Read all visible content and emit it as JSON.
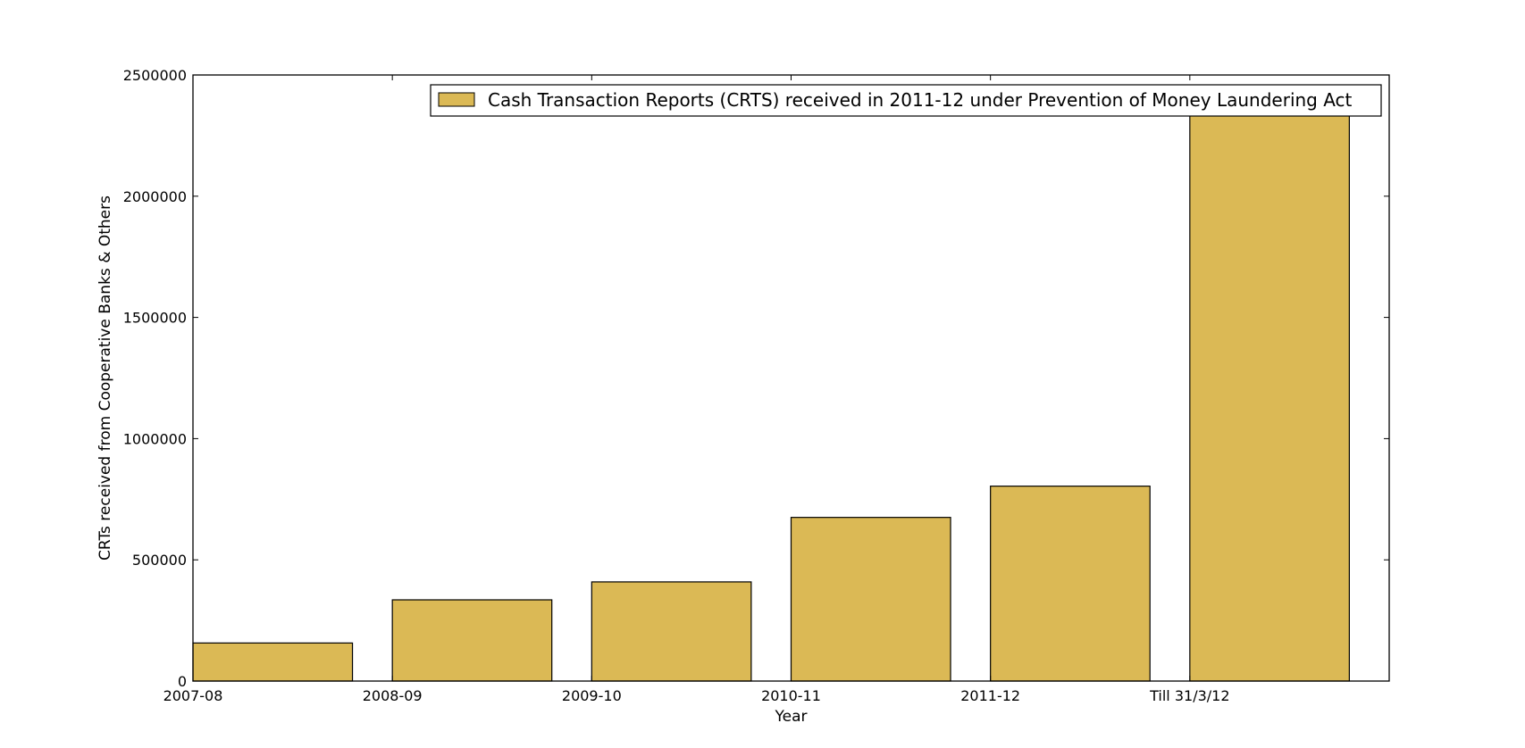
{
  "chart_data": {
    "type": "bar",
    "title": "",
    "xlabel": "Year",
    "ylabel": "CRTs received from Cooperative Banks & Others",
    "categories": [
      "2007-08",
      "2008-09",
      "2009-10",
      "2010-11",
      "2011-12",
      "Till 31/3/12"
    ],
    "series": [
      {
        "name": "Cash Transaction Reports (CRTS) received in 2011-12 under Prevention of Money Laundering Act",
        "values": [
          157000,
          335000,
          409000,
          675000,
          804000,
          2340000
        ],
        "color": "#dbb955"
      }
    ],
    "ylim": [
      0,
      2500000
    ],
    "yticks": [
      "0",
      "500000",
      "1000000",
      "1500000",
      "2000000",
      "2500000"
    ],
    "ytick_values": [
      0,
      500000,
      1000000,
      1500000,
      2000000,
      2500000
    ],
    "grid": false,
    "legend_position": "top-right"
  }
}
